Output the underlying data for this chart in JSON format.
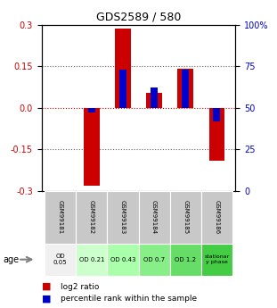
{
  "title": "GDS2589 / 580",
  "samples": [
    "GSM99181",
    "GSM99182",
    "GSM99183",
    "GSM99184",
    "GSM99185",
    "GSM99186"
  ],
  "log2_ratio": [
    0.0,
    -0.28,
    0.285,
    0.055,
    0.14,
    -0.19
  ],
  "percentile_rank": [
    0.5,
    0.47,
    0.73,
    0.62,
    0.73,
    0.42
  ],
  "ylim": [
    -0.3,
    0.3
  ],
  "yticks_left": [
    -0.3,
    -0.15,
    0.0,
    0.15,
    0.3
  ],
  "yticks_right": [
    0,
    25,
    50,
    75,
    100
  ],
  "bar_color_red": "#cc0000",
  "bar_color_blue": "#0000cc",
  "age_labels": [
    "OD\n0.05",
    "OD 0.21",
    "OD 0.43",
    "OD 0.7",
    "OD 1.2",
    "stationar\ny phase"
  ],
  "age_colors": [
    "#f0f0f0",
    "#ccffcc",
    "#aaffaa",
    "#88ee88",
    "#66dd66",
    "#44cc44"
  ],
  "legend_red": "log2 ratio",
  "legend_blue": "percentile rank within the sample",
  "ylabel_left_color": "#cc0000",
  "ylabel_right_color": "#0000cc",
  "xlabel_rotation": -90,
  "dotted_line_color": "#555555",
  "zero_line_color": "#cc0000",
  "bar_width": 0.5,
  "percentile_bar_width": 0.25
}
